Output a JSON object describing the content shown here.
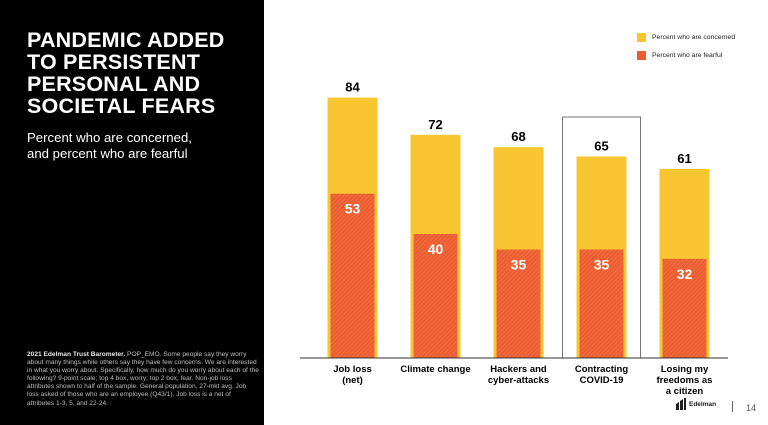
{
  "slide": {
    "title": "PANDEMIC ADDED\nTO PERSISTENT\nPERSONAL AND\nSOCIETAL FEARS",
    "subtitle": "Percent who are concerned,\nand percent who are fearful",
    "footnote_lead": "2021 Edelman Trust Barometer.",
    "footnote_body": " POP_EMO. Some people say they worry about many things while others say they have few concerns. We are interested in what you worry about. Specifically, how much do you worry about each of the following? 9-point scale; top 4 box, worry; top 2 box, fear. Non-job loss attributes shown to half of the sample. General population, 27-mkt avg. Job loss asked of those who are an employee (Q43/1). Job loss is a net of attributes 1-3, 5, and 22-24.",
    "brand": "Edelman",
    "page_number": "14"
  },
  "colors": {
    "concerned": "#f8c630",
    "fearful": "#ec5e32",
    "panel": "#000000"
  },
  "chart_data": {
    "type": "bar",
    "categories": [
      "Job loss\n(net)",
      "Climate change",
      "Hackers and\ncyber-attacks",
      "Contracting\nCOVID-19",
      "Losing my\nfreedoms as\na citizen"
    ],
    "series": [
      {
        "name": "Percent who are concerned",
        "values": [
          84,
          72,
          68,
          65,
          61
        ]
      },
      {
        "name": "Percent who are fearful",
        "values": [
          53,
          40,
          35,
          35,
          32
        ]
      }
    ],
    "highlighted_category": "Contracting\nCOVID-19",
    "ylim": [
      0,
      100
    ],
    "grid": false,
    "legend_position": "top-right",
    "data_labels": true
  }
}
